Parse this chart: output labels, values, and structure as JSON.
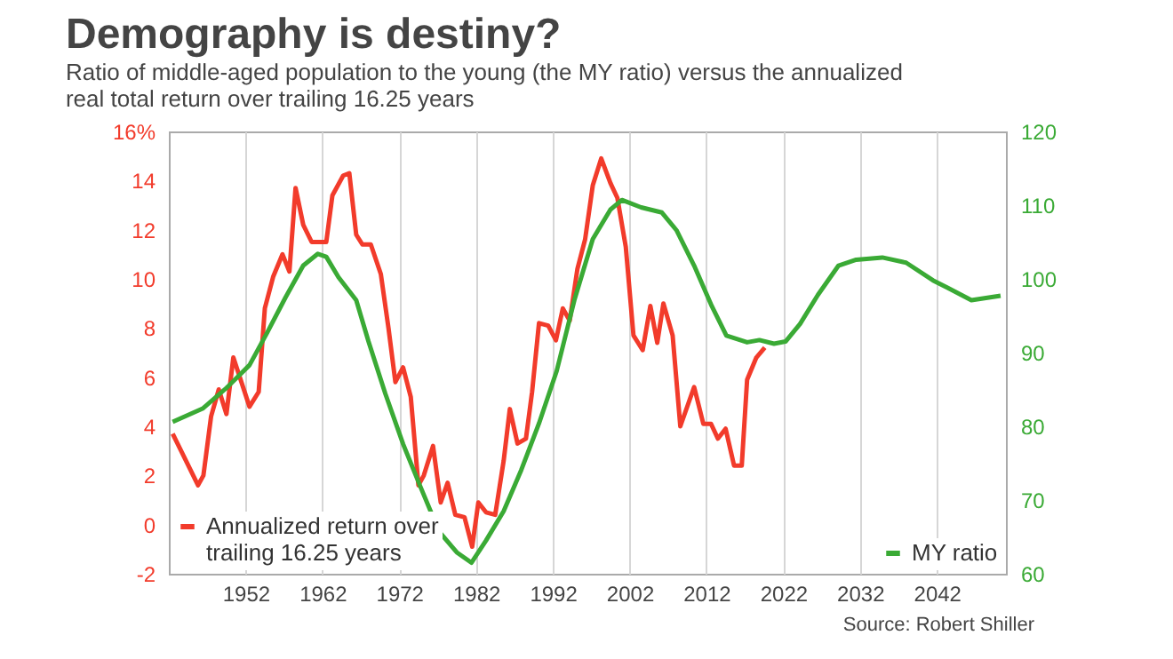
{
  "chart_data": {
    "type": "line",
    "title": "Demography is destiny?",
    "subtitle": "Ratio of middle-aged population to the young (the MY ratio) versus the annualized real total return over trailing 16.25 years",
    "xlim": [
      1942,
      2051
    ],
    "xticks": [
      1952,
      1962,
      1972,
      1982,
      1992,
      2002,
      2012,
      2022,
      2032,
      2042
    ],
    "ylim": [
      -2,
      16
    ],
    "yticks": [
      -2,
      0,
      2,
      4,
      6,
      8,
      10,
      12,
      14,
      {
        "value": 16,
        "label": "16%"
      }
    ],
    "y2lim": [
      60,
      120
    ],
    "y2ticks": [
      60,
      70,
      80,
      90,
      100,
      110,
      120
    ],
    "grid": "x",
    "legend": "bottom",
    "annotations": [
      "Source: Robert Shiller"
    ],
    "series": [
      {
        "name": "Annualized return over trailing 16.25 years",
        "color": "#f23b2b",
        "x": [
          1942.5,
          1945.8,
          1946.5,
          1947.5,
          1948.5,
          1949.5,
          1950.4,
          1952.5,
          1953.7,
          1954.5,
          1955.6,
          1956.8,
          1957.7,
          1958.5,
          1959.5,
          1960.6,
          1962.5,
          1963.3,
          1964.7,
          1965.5,
          1966.4,
          1967.2,
          1968.3,
          1969.6,
          1970.6,
          1971.5,
          1972.5,
          1973.5,
          1974.5,
          1975.2,
          1976.4,
          1977.4,
          1978.3,
          1979.3,
          1980.5,
          1981.5,
          1982.3,
          1983.3,
          1984.5,
          1985.6,
          1986.4,
          1987.4,
          1988.5,
          1989.3,
          1990.2,
          1991.4,
          1992.4,
          1993.3,
          1994.2,
          1995.2,
          1996.2,
          1997.2,
          1998.3,
          1999.5,
          2000.4,
          2001.5,
          2002.5,
          2003.7,
          2004.7,
          2005.6,
          2006.4,
          2007.6,
          2008.6,
          2010.4,
          2011.6,
          2012.6,
          2013.5,
          2014.5,
          2015.6,
          2016.6,
          2017.3,
          2018.5,
          2019.6
        ],
        "values": [
          3.7,
          1.6,
          2.0,
          4.4,
          5.5,
          4.5,
          6.8,
          4.8,
          5.4,
          8.8,
          10.1,
          11.0,
          10.3,
          13.7,
          12.2,
          11.5,
          11.5,
          13.4,
          14.2,
          14.3,
          11.8,
          11.4,
          11.4,
          10.2,
          8.0,
          5.8,
          6.4,
          5.2,
          1.6,
          2.0,
          3.2,
          0.9,
          1.7,
          0.4,
          0.3,
          -0.9,
          0.9,
          0.5,
          0.4,
          2.6,
          4.7,
          3.3,
          3.5,
          5.4,
          8.2,
          8.1,
          7.5,
          8.8,
          8.3,
          10.4,
          11.6,
          13.8,
          14.9,
          13.9,
          13.3,
          11.3,
          7.7,
          7.1,
          8.9,
          7.4,
          9.0,
          7.7,
          4.0,
          5.6,
          4.1,
          4.1,
          3.5,
          3.9,
          2.4,
          2.4,
          5.9,
          6.8,
          7.2
        ]
      },
      {
        "name": "MY ratio",
        "color": "#3aaa35",
        "axis": "y2",
        "x": [
          1942.5,
          1946.4,
          1949.5,
          1952.5,
          1954.8,
          1957.2,
          1959.5,
          1961.4,
          1962.5,
          1964.1,
          1966.4,
          1968.0,
          1970.2,
          1972.5,
          1974.8,
          1977.2,
          1979.5,
          1981.4,
          1983.3,
          1985.6,
          1987.9,
          1990.2,
          1992.5,
          1994.8,
          1997.2,
          1999.5,
          2001.0,
          2003.5,
          2006.2,
          2008.1,
          2010.4,
          2012.7,
          2014.6,
          2017.3,
          2018.9,
          2020.8,
          2022.3,
          2024.2,
          2026.5,
          2029.2,
          2031.5,
          2034.9,
          2038.0,
          2041.5,
          2043.4,
          2046.5,
          2050.3
        ],
        "values": [
          80.6,
          82.4,
          85.2,
          88.3,
          92.7,
          97.5,
          101.8,
          103.4,
          103.0,
          100.2,
          97.1,
          91.5,
          84.4,
          77.6,
          71.7,
          65.7,
          62.9,
          61.5,
          64.5,
          68.5,
          74.1,
          80.4,
          87.5,
          97.1,
          105.4,
          109.4,
          110.7,
          109.7,
          109.0,
          106.6,
          101.8,
          96.3,
          92.3,
          91.4,
          91.7,
          91.2,
          91.5,
          93.9,
          97.8,
          101.8,
          102.6,
          102.9,
          102.2,
          99.8,
          98.8,
          97.1,
          97.7
        ]
      }
    ]
  }
}
